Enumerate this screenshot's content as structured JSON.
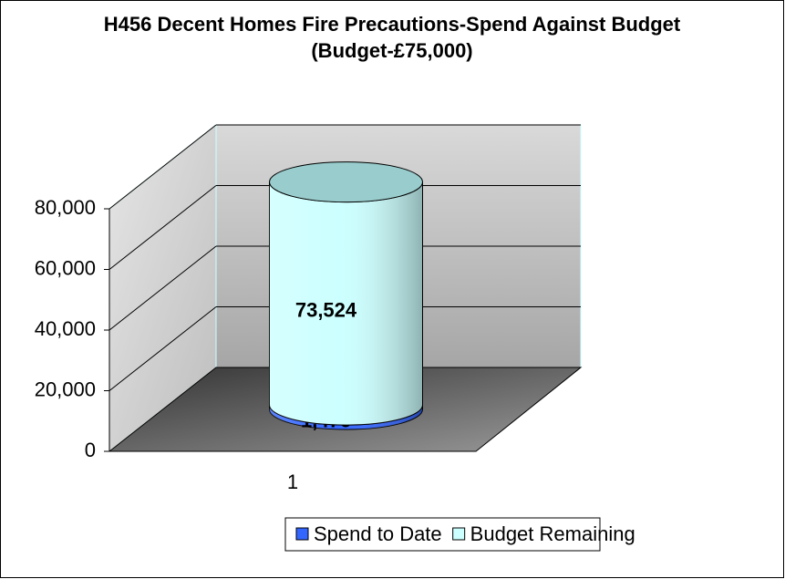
{
  "chart_data": {
    "type": "bar3d_cylinder_stacked",
    "title": "H456 Decent Homes Fire Precautions-Spend Against Budget (Budget-£75,000)",
    "categories": [
      "1"
    ],
    "series": [
      {
        "name": "Spend to Date",
        "color": "#3366ff",
        "values": [
          1476
        ],
        "value_labels": [
          "1,476"
        ]
      },
      {
        "name": "Budget Remaining",
        "color": "#ccffff",
        "values": [
          73524
        ],
        "value_labels": [
          "73,524"
        ]
      }
    ],
    "ylim": [
      0,
      80000
    ],
    "yticks": [
      0,
      {
        "value": 20000,
        "label": "20,000"
      },
      {
        "value": 40000,
        "label": "40,000"
      },
      {
        "value": 60000,
        "label": "60,000"
      },
      {
        "value": 80000,
        "label": "80,000"
      }
    ],
    "grid": true,
    "legend": "bottom"
  }
}
